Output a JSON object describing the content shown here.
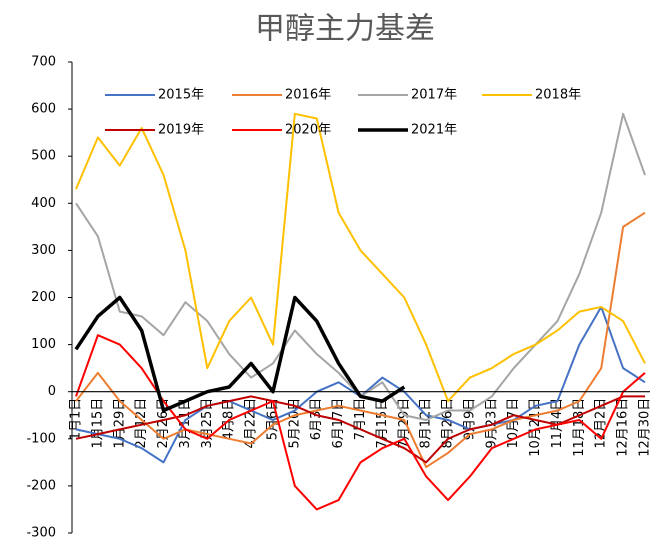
{
  "chart_data": {
    "type": "line",
    "title": "甲醇主力基差",
    "categories": [
      "1月1日",
      "1月15日",
      "1月29日",
      "2月12日",
      "2月26日",
      "3月11日",
      "3月25日",
      "4月8日",
      "4月22日",
      "5月6日",
      "5月20日",
      "6月3日",
      "6月17日",
      "7月1日",
      "7月15日",
      "7月29日",
      "8月12日",
      "8月26日",
      "9月9日",
      "9月23日",
      "10月7日",
      "10月21日",
      "11月4日",
      "11月18日",
      "12月2日",
      "12月16日",
      "12月30日"
    ],
    "series": [
      {
        "name": "2015年",
        "color": "#4472c4",
        "width": 2,
        "values": [
          -80,
          -90,
          -100,
          -120,
          -150,
          -60,
          -30,
          -20,
          -40,
          -60,
          -40,
          0,
          20,
          -10,
          30,
          0,
          -50,
          -60,
          -80,
          -70,
          -60,
          -30,
          -20,
          100,
          180,
          50,
          20
        ]
      },
      {
        "name": "2016年",
        "color": "#ed7d31",
        "width": 2,
        "values": [
          -20,
          40,
          -20,
          -60,
          -100,
          -80,
          -90,
          -100,
          -110,
          -70,
          -50,
          -40,
          -30,
          -40,
          -50,
          -60,
          -160,
          -130,
          -90,
          -80,
          -60,
          -50,
          -40,
          -20,
          50,
          350,
          380
        ]
      },
      {
        "name": "2017年",
        "color": "#a5a5a5",
        "width": 2,
        "values": [
          400,
          330,
          170,
          160,
          120,
          190,
          150,
          80,
          30,
          60,
          130,
          80,
          40,
          -10,
          20,
          -50,
          -60,
          -40,
          -40,
          -10,
          50,
          100,
          150,
          250,
          380,
          590,
          460
        ]
      },
      {
        "name": "2018年",
        "color": "#ffc000",
        "width": 2,
        "values": [
          430,
          540,
          480,
          560,
          460,
          300,
          50,
          150,
          200,
          100,
          590,
          580,
          380,
          300,
          250,
          200,
          100,
          -20,
          30,
          50,
          80,
          100,
          130,
          170,
          180,
          150,
          60
        ]
      },
      {
        "name": "2019年",
        "color": "#c00000",
        "width": 2,
        "values": [
          -100,
          -90,
          -80,
          -70,
          -60,
          -50,
          -30,
          -20,
          -10,
          -20,
          -30,
          -50,
          -60,
          -80,
          -100,
          -120,
          -150,
          -100,
          -80,
          -70,
          -50,
          -60,
          -70,
          -50,
          -30,
          -10,
          -10
        ]
      },
      {
        "name": "2020年",
        "color": "#ff0000",
        "width": 2,
        "values": [
          -10,
          120,
          100,
          50,
          -20,
          -80,
          -100,
          -60,
          -40,
          -20,
          -200,
          -250,
          -230,
          -150,
          -120,
          -100,
          -180,
          -230,
          -180,
          -120,
          -100,
          -80,
          -70,
          -60,
          -100,
          0,
          40
        ]
      },
      {
        "name": "2021年",
        "color": "#000000",
        "width": 3.5,
        "values": [
          90,
          160,
          200,
          130,
          -40,
          -20,
          0,
          10,
          60,
          0,
          200,
          150,
          60,
          -10,
          -20,
          10,
          null,
          null,
          null,
          null,
          null,
          null,
          null,
          null,
          null,
          null,
          null
        ]
      }
    ],
    "ylim": [
      -300,
      700
    ],
    "yticks": [
      -300,
      -200,
      -100,
      0,
      100,
      200,
      300,
      400,
      500,
      600,
      700
    ]
  }
}
